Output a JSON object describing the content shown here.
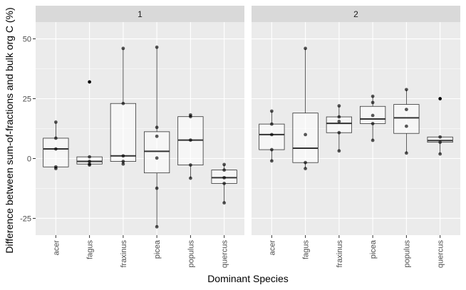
{
  "chart_data": {
    "type": "box",
    "xlabel": "Dominant Species",
    "ylabel": "Difference between sum-of-fractions and bulk org C (%)",
    "ylim": [
      -32,
      57
    ],
    "yticks": [
      -25,
      0,
      25,
      50
    ],
    "ytick_labels": [
      "-25",
      "0",
      "25",
      "50"
    ],
    "categories": [
      "acer",
      "fagus",
      "fraxinus",
      "picea",
      "populus",
      "quercus"
    ],
    "grid": true,
    "colors": {
      "panel_bg": "#ebebeb",
      "strip_bg": "#d9d9d9",
      "grid_major": "#ffffff",
      "box_fill": "#ffffff",
      "line": "#333333",
      "points": "#000000"
    },
    "panels": [
      {
        "label": "1",
        "boxes": [
          {
            "category": "acer",
            "min": -4.2,
            "q1": -3.5,
            "median": 4,
            "q3": 8.5,
            "max": 15.2,
            "points": [
              15.2,
              8.5,
              4,
              -3.5,
              -4.2
            ]
          },
          {
            "category": "fagus",
            "min": -2.7,
            "q1": -2.3,
            "median": -1.2,
            "q3": 0.7,
            "max": 0.7,
            "outliers": [
              32
            ],
            "points": [
              32,
              0.7,
              -1.2,
              -2.3,
              -2.7
            ]
          },
          {
            "category": "fraxinus",
            "min": -2.3,
            "q1": -1.2,
            "median": 1.1,
            "q3": 23,
            "max": 46,
            "points": [
              46,
              23,
              1.1,
              -1.2,
              -2.3
            ]
          },
          {
            "category": "picea",
            "min": -28.5,
            "q1": -6,
            "median": 3,
            "q3": 11.2,
            "max": 46.5,
            "points": [
              46.5,
              13,
              9.3,
              0.2,
              -12.4,
              -28.5
            ]
          },
          {
            "category": "populus",
            "min": -8.2,
            "q1": -2.7,
            "median": 7.7,
            "q3": 17.5,
            "max": 18.2,
            "points": [
              18.2,
              17.5,
              7.7,
              -2.7,
              -8.2
            ]
          },
          {
            "category": "quercus",
            "min": -18.5,
            "q1": -10.4,
            "median": -8,
            "q3": -4.8,
            "max": -2.5,
            "points": [
              -2.5,
              -4.8,
              -8,
              -10.4,
              -18.5
            ]
          }
        ]
      },
      {
        "label": "2",
        "boxes": [
          {
            "category": "acer",
            "min": -1,
            "q1": 3.7,
            "median": 10,
            "q3": 14.4,
            "max": 19.8,
            "points": [
              19.8,
              14.4,
              10,
              3.7,
              -1
            ]
          },
          {
            "category": "fagus",
            "min": -4.2,
            "q1": -1.7,
            "median": 4.3,
            "q3": 19,
            "max": 46,
            "points": [
              46,
              10,
              -1.7,
              -4.2
            ]
          },
          {
            "category": "fraxinus",
            "min": 3.2,
            "q1": 10.8,
            "median": 14.7,
            "q3": 17.4,
            "max": 22,
            "points": [
              22,
              17.4,
              15.5,
              10.8,
              3.2
            ]
          },
          {
            "category": "picea",
            "min": 7.6,
            "q1": 14.6,
            "median": 16.5,
            "q3": 21.8,
            "max": 26,
            "points": [
              26,
              23.4,
              18,
              14.6,
              7.6
            ]
          },
          {
            "category": "populus",
            "min": 2.3,
            "q1": 10.5,
            "median": 17,
            "q3": 22.6,
            "max": 28.8,
            "points": [
              28.8,
              20.5,
              13.5,
              2.3
            ]
          },
          {
            "category": "quercus",
            "min": 1.9,
            "q1": 6.8,
            "median": 7.5,
            "q3": 9,
            "max": 9,
            "outliers": [
              25
            ],
            "points": [
              25,
              9,
              6.8,
              1.9
            ]
          }
        ]
      }
    ]
  }
}
